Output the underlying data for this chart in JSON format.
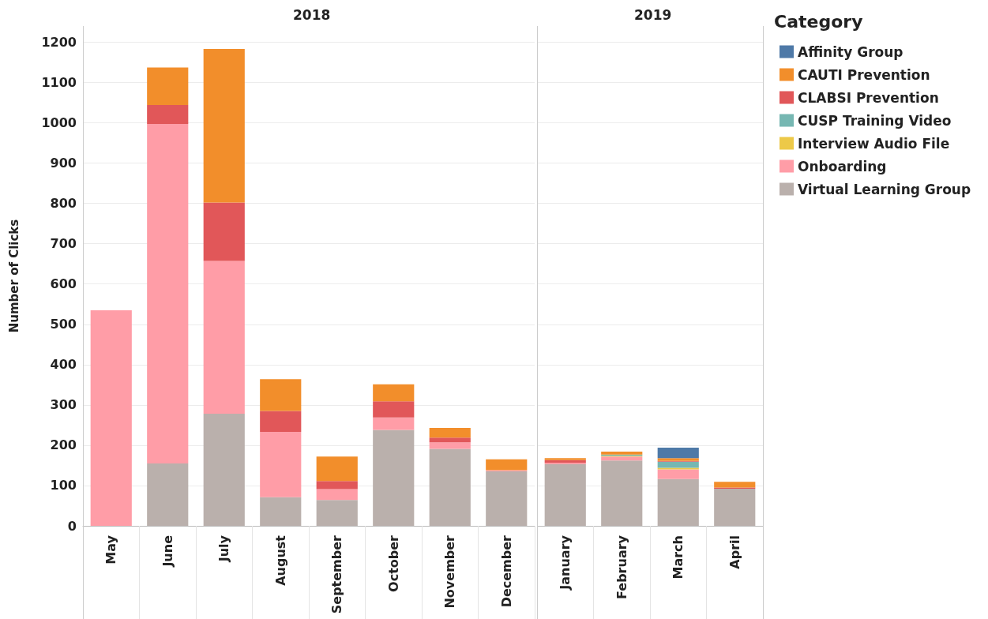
{
  "chart_data": [
    {
      "type": "bar",
      "title": "2018",
      "ylabel": "Number of Clicks",
      "categories": [
        "May",
        "June",
        "July",
        "August",
        "September",
        "October",
        "November",
        "December"
      ],
      "stacked": true,
      "ylim": [
        0,
        1240
      ],
      "yticks": [
        0,
        100,
        200,
        300,
        400,
        500,
        600,
        700,
        800,
        900,
        1000,
        1100,
        1200
      ],
      "grid": "y",
      "legend": false,
      "series": [
        {
          "color": "#bab0ac",
          "values": [
            null,
            155,
            278,
            71,
            64,
            238,
            191,
            135
          ]
        },
        {
          "color": "#ff9da7",
          "values": [
            535,
            842,
            379,
            162,
            27,
            31,
            16,
            3
          ]
        },
        {
          "color": "#e15759",
          "values": [
            null,
            47,
            145,
            52,
            20,
            40,
            12,
            null
          ]
        },
        {
          "color": "#f28e2b",
          "values": [
            null,
            93,
            381,
            79,
            61,
            42,
            24,
            27
          ]
        }
      ]
    },
    {
      "type": "bar",
      "title": "2019",
      "legend_title": "Category",
      "categories": [
        "January",
        "February",
        "March",
        "April"
      ],
      "stacked": true,
      "ylim": [
        0,
        1240
      ],
      "yticks": [
        0,
        100,
        200,
        300,
        400,
        500,
        600,
        700,
        800,
        900,
        1000,
        1100,
        1200
      ],
      "grid": "y",
      "legend": "right",
      "tick_labels": "x",
      "series": [
        {
          "name": "Virtual Learning Group",
          "color": "#bab0ac",
          "values": [
            153,
            162,
            116,
            92
          ]
        },
        {
          "name": "Onboarding",
          "color": "#ff9da7",
          "values": [
            3,
            10,
            24,
            null
          ]
        },
        {
          "name": "Interview Audio File",
          "color": "#edc948",
          "values": [
            null,
            2,
            4,
            null
          ]
        },
        {
          "name": "CUSP Training Video",
          "color": "#76b7b2",
          "values": [
            null,
            3,
            15,
            null
          ]
        },
        {
          "name": "CLABSI Prevention",
          "color": "#e15759",
          "values": [
            7,
            null,
            2,
            3
          ]
        },
        {
          "name": "CAUTI Prevention",
          "color": "#f28e2b",
          "values": [
            5,
            7,
            7,
            14
          ]
        },
        {
          "name": "Affinity Group",
          "color": "#4e79a7",
          "values": [
            null,
            null,
            26,
            null
          ]
        }
      ]
    }
  ]
}
